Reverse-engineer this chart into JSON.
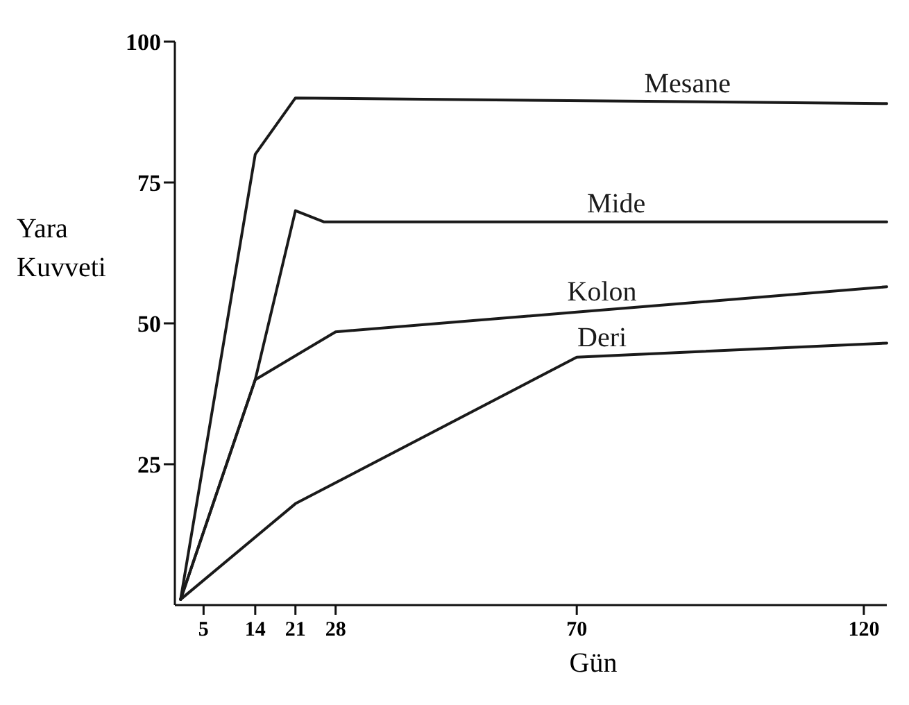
{
  "chart_data": {
    "type": "line",
    "xlabel": "Gün",
    "ylabel": "Yara Kuvveti",
    "xlim": [
      0,
      124
    ],
    "ylim": [
      0,
      100
    ],
    "xticks": [
      5,
      14,
      21,
      28,
      70,
      120
    ],
    "yticks": [
      25,
      50,
      75,
      100
    ],
    "grid": false,
    "marker": "none",
    "line_style": "solid",
    "series": [
      {
        "name": "Mesane",
        "color": "#1a1a1a",
        "x": [
          1,
          14,
          21,
          124
        ],
        "values": [
          1,
          80,
          90,
          89
        ]
      },
      {
        "name": "Mide",
        "color": "#1a1a1a",
        "x": [
          1,
          14,
          21,
          26,
          124
        ],
        "values": [
          1,
          40,
          70,
          68,
          68
        ]
      },
      {
        "name": "Kolon",
        "color": "#1a1a1a",
        "x": [
          1,
          14,
          28,
          70,
          124
        ],
        "values": [
          1,
          40,
          48.5,
          52,
          56.5
        ]
      },
      {
        "name": "Deri",
        "color": "#1a1a1a",
        "x": [
          1,
          21,
          70,
          124
        ],
        "values": [
          1,
          18,
          44,
          46.5
        ]
      }
    ]
  }
}
